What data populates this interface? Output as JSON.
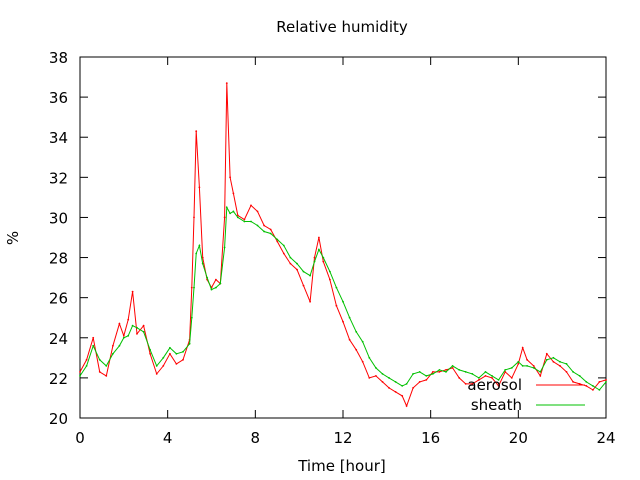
{
  "chart_data": {
    "type": "line",
    "title": "Relative humidity",
    "xlabel": "Time [hour]",
    "ylabel": "%",
    "xlim": [
      0,
      24
    ],
    "ylim": [
      20,
      38
    ],
    "xticks": [
      0,
      4,
      8,
      12,
      16,
      20,
      24
    ],
    "yticks": [
      20,
      22,
      24,
      26,
      28,
      30,
      32,
      34,
      36,
      38
    ],
    "grid": false,
    "legend_position": "bottom-right",
    "series": [
      {
        "name": "aerosol",
        "color": "#ff0000",
        "x": [
          0,
          0.3,
          0.6,
          0.9,
          1.2,
          1.5,
          1.8,
          2.0,
          2.2,
          2.4,
          2.6,
          2.9,
          3.2,
          3.5,
          3.8,
          4.1,
          4.4,
          4.7,
          5.0,
          5.1,
          5.2,
          5.3,
          5.45,
          5.6,
          5.8,
          6.0,
          6.2,
          6.4,
          6.6,
          6.7,
          6.85,
          7.0,
          7.2,
          7.5,
          7.8,
          8.1,
          8.4,
          8.7,
          9.0,
          9.3,
          9.6,
          9.9,
          10.2,
          10.5,
          10.7,
          10.9,
          11.1,
          11.4,
          11.7,
          12.0,
          12.3,
          12.6,
          12.9,
          13.2,
          13.5,
          13.8,
          14.1,
          14.4,
          14.7,
          14.9,
          15.2,
          15.5,
          15.8,
          16.1,
          16.4,
          16.7,
          17.0,
          17.3,
          17.6,
          17.9,
          18.2,
          18.5,
          18.8,
          19.1,
          19.4,
          19.7,
          20.0,
          20.2,
          20.4,
          20.7,
          21.0,
          21.3,
          21.6,
          21.9,
          22.2,
          22.5,
          22.8,
          23.1,
          23.4,
          23.7,
          24.0
        ],
        "y": [
          22.3,
          22.9,
          24.0,
          22.3,
          22.1,
          23.6,
          24.7,
          24.1,
          24.9,
          26.3,
          24.2,
          24.6,
          23.2,
          22.2,
          22.6,
          23.2,
          22.7,
          22.9,
          23.9,
          26.5,
          30.0,
          34.3,
          31.5,
          28.0,
          26.9,
          26.5,
          26.9,
          26.7,
          30.0,
          36.7,
          32.0,
          31.2,
          30.1,
          29.9,
          30.6,
          30.3,
          29.6,
          29.4,
          28.8,
          28.2,
          27.7,
          27.4,
          26.6,
          25.8,
          28.0,
          29.0,
          27.8,
          26.9,
          25.6,
          24.8,
          23.9,
          23.4,
          22.8,
          22.0,
          22.1,
          21.8,
          21.5,
          21.3,
          21.1,
          20.6,
          21.5,
          21.8,
          21.9,
          22.3,
          22.3,
          22.4,
          22.5,
          22.0,
          21.7,
          21.7,
          21.9,
          22.1,
          22.0,
          21.6,
          22.3,
          22.0,
          22.7,
          23.5,
          22.9,
          22.6,
          22.1,
          23.2,
          22.8,
          22.6,
          22.3,
          21.8,
          21.7,
          21.6,
          21.4,
          21.8,
          21.9
        ]
      },
      {
        "name": "sheath",
        "color": "#00c000",
        "x": [
          0,
          0.3,
          0.6,
          0.9,
          1.2,
          1.5,
          1.8,
          2.0,
          2.2,
          2.4,
          2.6,
          2.9,
          3.2,
          3.5,
          3.8,
          4.1,
          4.4,
          4.7,
          5.0,
          5.1,
          5.2,
          5.3,
          5.45,
          5.6,
          5.8,
          6.0,
          6.2,
          6.4,
          6.6,
          6.7,
          6.85,
          7.0,
          7.2,
          7.5,
          7.8,
          8.1,
          8.4,
          8.7,
          9.0,
          9.3,
          9.6,
          9.9,
          10.2,
          10.5,
          10.7,
          10.9,
          11.1,
          11.4,
          11.7,
          12.0,
          12.3,
          12.6,
          12.9,
          13.2,
          13.5,
          13.8,
          14.1,
          14.4,
          14.7,
          14.9,
          15.2,
          15.5,
          15.8,
          16.1,
          16.4,
          16.7,
          17.0,
          17.3,
          17.6,
          17.9,
          18.2,
          18.5,
          18.8,
          19.1,
          19.4,
          19.7,
          20.0,
          20.2,
          20.4,
          20.7,
          21.0,
          21.3,
          21.6,
          21.9,
          22.2,
          22.5,
          22.8,
          23.1,
          23.4,
          23.7,
          24.0
        ],
        "y": [
          22.1,
          22.6,
          23.6,
          22.9,
          22.6,
          23.2,
          23.6,
          24.0,
          24.1,
          24.6,
          24.5,
          24.3,
          23.4,
          22.6,
          23.0,
          23.5,
          23.2,
          23.3,
          23.7,
          25.0,
          26.5,
          28.2,
          28.6,
          27.7,
          27.0,
          26.4,
          26.5,
          26.7,
          28.5,
          30.5,
          30.2,
          30.3,
          30.0,
          29.8,
          29.8,
          29.6,
          29.3,
          29.2,
          28.9,
          28.6,
          28.0,
          27.7,
          27.3,
          27.1,
          27.8,
          28.4,
          28.0,
          27.3,
          26.5,
          25.8,
          25.0,
          24.3,
          23.8,
          23.0,
          22.5,
          22.2,
          22.0,
          21.8,
          21.6,
          21.7,
          22.2,
          22.3,
          22.1,
          22.2,
          22.4,
          22.3,
          22.6,
          22.4,
          22.3,
          22.2,
          22.0,
          22.3,
          22.1,
          21.9,
          22.4,
          22.5,
          22.8,
          22.6,
          22.6,
          22.5,
          22.3,
          22.9,
          23.0,
          22.8,
          22.7,
          22.3,
          22.1,
          21.8,
          21.6,
          21.4,
          21.8
        ]
      }
    ]
  }
}
